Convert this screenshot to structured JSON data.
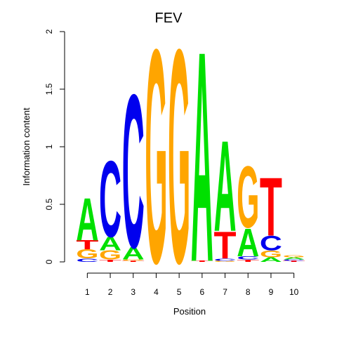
{
  "chart_data": {
    "type": "sequence-logo",
    "title": "FEV",
    "xlabel": "Position",
    "ylabel": "Information content",
    "ylim": [
      0,
      2
    ],
    "yticks": [
      0,
      0.5,
      1,
      1.5,
      2
    ],
    "ytick_labels": [
      "0",
      "0.5",
      "1",
      "1.5",
      "2"
    ],
    "positions": [
      1,
      2,
      3,
      4,
      5,
      6,
      7,
      8,
      9,
      10
    ],
    "position_labels": [
      "1",
      "2",
      "3",
      "4",
      "5",
      "6",
      "7",
      "8",
      "9",
      "10"
    ],
    "colors": {
      "A": "#00e000",
      "C": "#0000ee",
      "G": "#ffa500",
      "T": "#ff0000"
    },
    "stacks": [
      [
        {
          "letter": "C",
          "value": 0.03
        },
        {
          "letter": "G",
          "value": 0.08
        },
        {
          "letter": "T",
          "value": 0.08
        },
        {
          "letter": "A",
          "value": 0.38
        }
      ],
      [
        {
          "letter": "T",
          "value": 0.02
        },
        {
          "letter": "G",
          "value": 0.08
        },
        {
          "letter": "A",
          "value": 0.12
        },
        {
          "letter": "C",
          "value": 0.68
        }
      ],
      [
        {
          "letter": "T",
          "value": 0.01
        },
        {
          "letter": "G",
          "value": 0.01
        },
        {
          "letter": "A",
          "value": 0.11
        },
        {
          "letter": "C",
          "value": 1.37
        }
      ],
      [
        {
          "letter": "T",
          "value": 0.0
        },
        {
          "letter": "A",
          "value": 0.0
        },
        {
          "letter": "C",
          "value": 0.0
        },
        {
          "letter": "G",
          "value": 1.91
        }
      ],
      [
        {
          "letter": "T",
          "value": 0.0
        },
        {
          "letter": "A",
          "value": 0.0
        },
        {
          "letter": "C",
          "value": 0.0
        },
        {
          "letter": "G",
          "value": 1.91
        }
      ],
      [
        {
          "letter": "C",
          "value": 0.0
        },
        {
          "letter": "G",
          "value": 0.0
        },
        {
          "letter": "T",
          "value": 0.01
        },
        {
          "letter": "A",
          "value": 1.88
        }
      ],
      [
        {
          "letter": "G",
          "value": 0.01
        },
        {
          "letter": "C",
          "value": 0.02
        },
        {
          "letter": "T",
          "value": 0.24
        },
        {
          "letter": "A",
          "value": 0.81
        }
      ],
      [
        {
          "letter": "T",
          "value": 0.02
        },
        {
          "letter": "C",
          "value": 0.03
        },
        {
          "letter": "A",
          "value": 0.25
        },
        {
          "letter": "G",
          "value": 0.55
        }
      ],
      [
        {
          "letter": "A",
          "value": 0.04
        },
        {
          "letter": "G",
          "value": 0.06
        },
        {
          "letter": "C",
          "value": 0.13
        },
        {
          "letter": "T",
          "value": 0.52
        }
      ],
      [
        {
          "letter": "T",
          "value": 0.01
        },
        {
          "letter": "C",
          "value": 0.01
        },
        {
          "letter": "A",
          "value": 0.02
        },
        {
          "letter": "G",
          "value": 0.02
        }
      ]
    ]
  }
}
